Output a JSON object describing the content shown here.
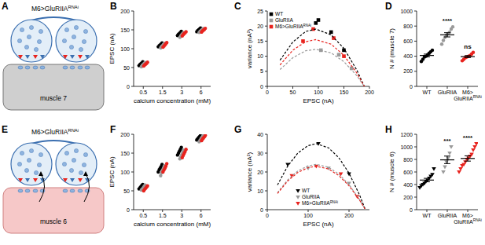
{
  "diagrams": [
    {
      "panel": "A",
      "label": {
        "text": "M6>GluRIIA",
        "sup": "RNAi"
      },
      "muscle": "muscle 7"
    },
    {
      "panel": "E",
      "label": {
        "text": "M6>GluRIIA",
        "sup": "RNAi"
      },
      "muscle": "muscle 6"
    }
  ],
  "chart_data": [
    {
      "panel": "B",
      "type": "scatter",
      "x_label": "calcium concentration (mM)",
      "y_label": "EPSC (nA)",
      "categories": [
        "0.5",
        "1.5",
        "3",
        "6"
      ],
      "ylim": [
        0,
        200
      ],
      "yticks": [
        0,
        50,
        100,
        150,
        200
      ],
      "marker": "circle",
      "series": [
        {
          "color": "#000000",
          "values": [
            [
              55,
              58,
              60,
              62,
              65
            ],
            [
              105,
              108,
              110,
              112,
              115
            ],
            [
              135,
              138,
              140,
              143,
              146
            ],
            [
              145,
              148,
              150,
              152,
              155
            ]
          ]
        },
        {
          "color": "#9a9a9a",
          "values": [
            [
              52,
              56,
              58,
              61,
              63
            ],
            [
              102,
              106,
              108,
              111,
              114
            ],
            [
              130,
              134,
              137,
              140,
              143
            ],
            [
              143,
              146,
              148,
              150,
              153
            ]
          ]
        },
        {
          "color": "#e8231e",
          "values": [
            [
              54,
              57,
              59,
              61,
              64
            ],
            [
              104,
              107,
              110,
              113,
              116
            ],
            [
              134,
              137,
              140,
              142,
              145
            ],
            [
              144,
              147,
              149,
              151,
              154
            ]
          ]
        }
      ]
    },
    {
      "panel": "C",
      "type": "scatter",
      "x_label": "EPSC (nA)",
      "y_label": "variance (nA²)",
      "xlim": [
        0,
        200
      ],
      "xticks": [
        0,
        50,
        100,
        150,
        200
      ],
      "ylim": [
        0,
        25
      ],
      "yticks": [
        0,
        5,
        10,
        15,
        20,
        25
      ],
      "legend": "upper left",
      "series": [
        {
          "name": "WT",
          "color": "#000000",
          "marker": "square",
          "x": [
            95,
            100,
            125,
            150
          ],
          "values": [
            21,
            22,
            18,
            12
          ]
        },
        {
          "name": "GluRIIA",
          "color": "#9a9a9a",
          "marker": "square",
          "x": [
            105,
            140,
            165
          ],
          "values": [
            12,
            10.5,
            6
          ]
        },
        {
          "name": {
            "text": "M6>GluRIIA",
            "sup": "RNAi"
          },
          "color": "#e8231e",
          "marker": "square",
          "x": [
            70,
            90,
            130,
            150
          ],
          "values": [
            15,
            19,
            16,
            10
          ]
        },
        {
          "type": "line",
          "line_style": "dashed",
          "color": "#000000",
          "x": [
            25,
            50,
            75,
            95,
            125,
            150,
            175,
            190
          ],
          "values": [
            8.7,
            14.7,
            18.2,
            19,
            17.1,
            12.6,
            5.5,
            0
          ]
        },
        {
          "type": "line",
          "line_style": "dashed",
          "color": "#9a9a9a",
          "x": [
            25,
            50,
            75,
            95,
            125,
            150,
            175,
            190
          ],
          "values": [
            5.6,
            9.5,
            11.8,
            12.3,
            11.1,
            8.2,
            3.6,
            0
          ]
        },
        {
          "type": "line",
          "line_style": "dashed",
          "color": "#e8231e",
          "x": [
            25,
            50,
            75,
            95,
            125,
            150,
            175,
            190
          ],
          "values": [
            7.1,
            12.0,
            14.8,
            15.5,
            14.0,
            10.3,
            4.5,
            0
          ]
        }
      ]
    },
    {
      "panel": "D",
      "type": "scatter",
      "y_label": "N # (muscle 7)",
      "categories": [
        "WT",
        "GluRIIA",
        {
          "text": "M6>GluRIIA",
          "sup": "RNAi"
        }
      ],
      "ylim": [
        0,
        1000
      ],
      "yticks": [
        0,
        200,
        400,
        600,
        800,
        1000
      ],
      "marker": "circle",
      "colors": [
        "#000000",
        "#9a9a9a",
        "#e8231e"
      ],
      "values": [
        [
          330,
          360,
          390,
          400,
          420,
          440,
          460,
          480
        ],
        [
          560,
          610,
          650,
          680,
          700,
          720,
          760,
          790
        ],
        [
          340,
          360,
          380,
          390,
          400,
          410,
          430,
          450
        ]
      ],
      "means": [
        410,
        684,
        395
      ],
      "errors": [
        18,
        28,
        13
      ],
      "annotations": [
        null,
        "****",
        "ns"
      ]
    },
    {
      "panel": "F",
      "type": "scatter",
      "x_label": "calcium concentration (mM)",
      "y_label": "EPSC (nA)",
      "categories": [
        "0.5",
        "1.5",
        "3",
        "6"
      ],
      "ylim": [
        0,
        200
      ],
      "yticks": [
        0,
        50,
        100,
        150,
        200
      ],
      "marker": "circle",
      "series": [
        {
          "color": "#000000",
          "values": [
            [
              55,
              58,
              61,
              64,
              67
            ],
            [
              100,
              106,
              110,
              114,
              120
            ],
            [
              145,
              150,
              155,
              160,
              165
            ],
            [
              185,
              188,
              191,
              194,
              197
            ]
          ]
        },
        {
          "color": "#9a9a9a",
          "values": [
            [
              52,
              55,
              58,
              62,
              65
            ],
            [
              90,
              98,
              104,
              110,
              116
            ],
            [
              135,
              140,
              146,
              152,
              158
            ],
            [
              180,
              184,
              188,
              192,
              196
            ]
          ]
        },
        {
          "color": "#e8231e",
          "values": [
            [
              50,
              54,
              57,
              60,
              63
            ],
            [
              100,
              105,
              110,
              115,
              122
            ],
            [
              138,
              144,
              149,
              154,
              160
            ],
            [
              183,
              187,
              190,
              193,
              197
            ]
          ]
        }
      ]
    },
    {
      "panel": "G",
      "type": "scatter",
      "x_label": "EPSC (nA)",
      "y_label": "variance (nA²)",
      "xlim": [
        0,
        250
      ],
      "xticks": [
        0,
        100,
        200
      ],
      "ylim": [
        0,
        40
      ],
      "yticks": [
        0,
        10,
        20,
        30,
        40
      ],
      "legend": "lower center",
      "series": [
        {
          "name": "WT",
          "color": "#000000",
          "marker": "triangle-down",
          "x": [
            50,
            125,
            200
          ],
          "values": [
            24,
            35,
            19
          ]
        },
        {
          "name": "GluRIIA",
          "color": "#9a9a9a",
          "marker": "triangle-down",
          "x": [
            100,
            150,
            200
          ],
          "values": [
            22,
            22,
            14
          ]
        },
        {
          "name": {
            "text": "M6>GluRIIA",
            "sup": "RNAi"
          },
          "color": "#e8231e",
          "marker": "triangle-down",
          "x": [
            60,
            120,
            180,
            220
          ],
          "values": [
            18,
            23,
            19,
            7
          ]
        },
        {
          "type": "line",
          "line_style": "dashed",
          "color": "#000000",
          "x": [
            25,
            50,
            75,
            100,
            120,
            150,
            175,
            200,
            225,
            240
          ],
          "values": [
            13.1,
            23.1,
            30.1,
            34.0,
            35.0,
            32.8,
            27.6,
            19.4,
            8.2,
            0
          ]
        },
        {
          "type": "line",
          "line_style": "dashed",
          "color": "#9a9a9a",
          "x": [
            25,
            50,
            75,
            100,
            120,
            150,
            175,
            200,
            225,
            240
          ],
          "values": [
            9.0,
            15.8,
            20.6,
            23.3,
            24.0,
            22.5,
            18.9,
            13.3,
            5.6,
            0
          ]
        },
        {
          "type": "line",
          "line_style": "dashed",
          "color": "#e8231e",
          "x": [
            25,
            50,
            75,
            100,
            120,
            150,
            175,
            200,
            225,
            240
          ],
          "values": [
            8.6,
            15.2,
            19.8,
            22.3,
            23.0,
            21.6,
            18.1,
            12.7,
            5.4,
            0
          ]
        }
      ]
    },
    {
      "panel": "H",
      "type": "scatter",
      "y_label": "N # (muscle 6)",
      "categories": [
        "WT",
        "GluRIIA",
        {
          "text": "M6>GluRIIA",
          "sup": "RNAi"
        }
      ],
      "ylim": [
        0,
        1200
      ],
      "yticks": [
        0,
        200,
        400,
        600,
        800,
        1000,
        1200
      ],
      "marker": "triangle-down",
      "colors": [
        "#000000",
        "#9a9a9a",
        "#e8231e"
      ],
      "values": [
        [
          350,
          380,
          400,
          420,
          450,
          470,
          500,
          530,
          560,
          650
        ],
        [
          600,
          680,
          760,
          820,
          900,
          1000
        ],
        [
          600,
          650,
          700,
          720,
          760,
          800,
          820,
          850,
          880,
          950,
          1000,
          1050
        ]
      ],
      "means": [
        471,
        793,
        815
      ],
      "errors": [
        28,
        60,
        42
      ],
      "annotations": [
        null,
        "***",
        "****"
      ]
    }
  ]
}
